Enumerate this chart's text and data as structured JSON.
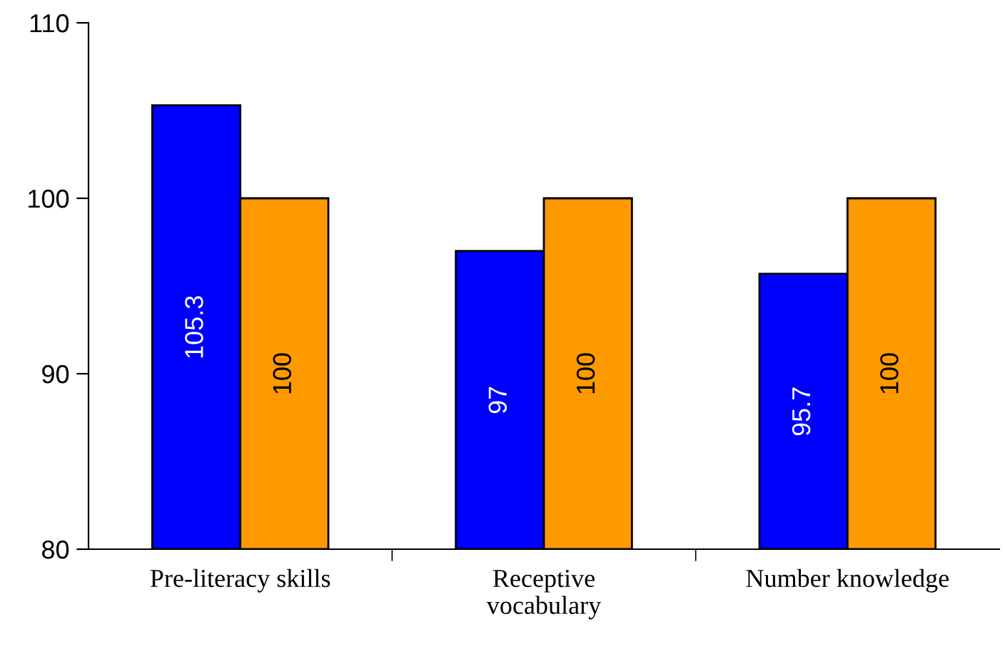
{
  "chart_data": {
    "type": "bar",
    "categories": [
      "Pre-literacy skills",
      "Receptive\nvocabulary",
      "Number knowledge"
    ],
    "series": [
      {
        "color": "#0000ff",
        "values": [
          105.3,
          97,
          95.7
        ]
      },
      {
        "color": "#ff9900",
        "values": [
          100,
          100,
          100
        ]
      }
    ],
    "ylim": [
      80,
      110
    ],
    "yticks": [
      80,
      90,
      100,
      110
    ],
    "grid": false,
    "data_labels": true
  }
}
